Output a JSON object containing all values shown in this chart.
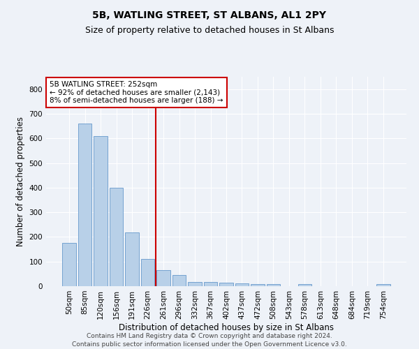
{
  "title": "5B, WATLING STREET, ST ALBANS, AL1 2PY",
  "subtitle": "Size of property relative to detached houses in St Albans",
  "xlabel": "Distribution of detached houses by size in St Albans",
  "ylabel": "Number of detached properties",
  "footer1": "Contains HM Land Registry data © Crown copyright and database right 2024.",
  "footer2": "Contains public sector information licensed under the Open Government Licence v3.0.",
  "categories": [
    "50sqm",
    "85sqm",
    "120sqm",
    "156sqm",
    "191sqm",
    "226sqm",
    "261sqm",
    "296sqm",
    "332sqm",
    "367sqm",
    "402sqm",
    "437sqm",
    "472sqm",
    "508sqm",
    "543sqm",
    "578sqm",
    "613sqm",
    "648sqm",
    "684sqm",
    "719sqm",
    "754sqm"
  ],
  "values": [
    175,
    660,
    610,
    400,
    218,
    110,
    65,
    45,
    18,
    16,
    14,
    12,
    9,
    9,
    0,
    9,
    0,
    0,
    0,
    0,
    8
  ],
  "bar_color": "#b8d0e8",
  "bar_edge_color": "#6699cc",
  "ylim": [
    0,
    850
  ],
  "yticks": [
    0,
    100,
    200,
    300,
    400,
    500,
    600,
    700,
    800
  ],
  "vline_x": 6,
  "vline_color": "#cc0000",
  "annotation_line1": "5B WATLING STREET: 252sqm",
  "annotation_line2": "← 92% of detached houses are smaller (2,143)",
  "annotation_line3": "8% of semi-detached houses are larger (188) →",
  "annotation_box_color": "#cc0000",
  "background_color": "#eef2f8",
  "grid_color": "#ffffff",
  "title_fontsize": 10,
  "subtitle_fontsize": 9,
  "axis_label_fontsize": 8.5,
  "tick_fontsize": 7.5,
  "annotation_fontsize": 7.5,
  "footer_fontsize": 6.5
}
